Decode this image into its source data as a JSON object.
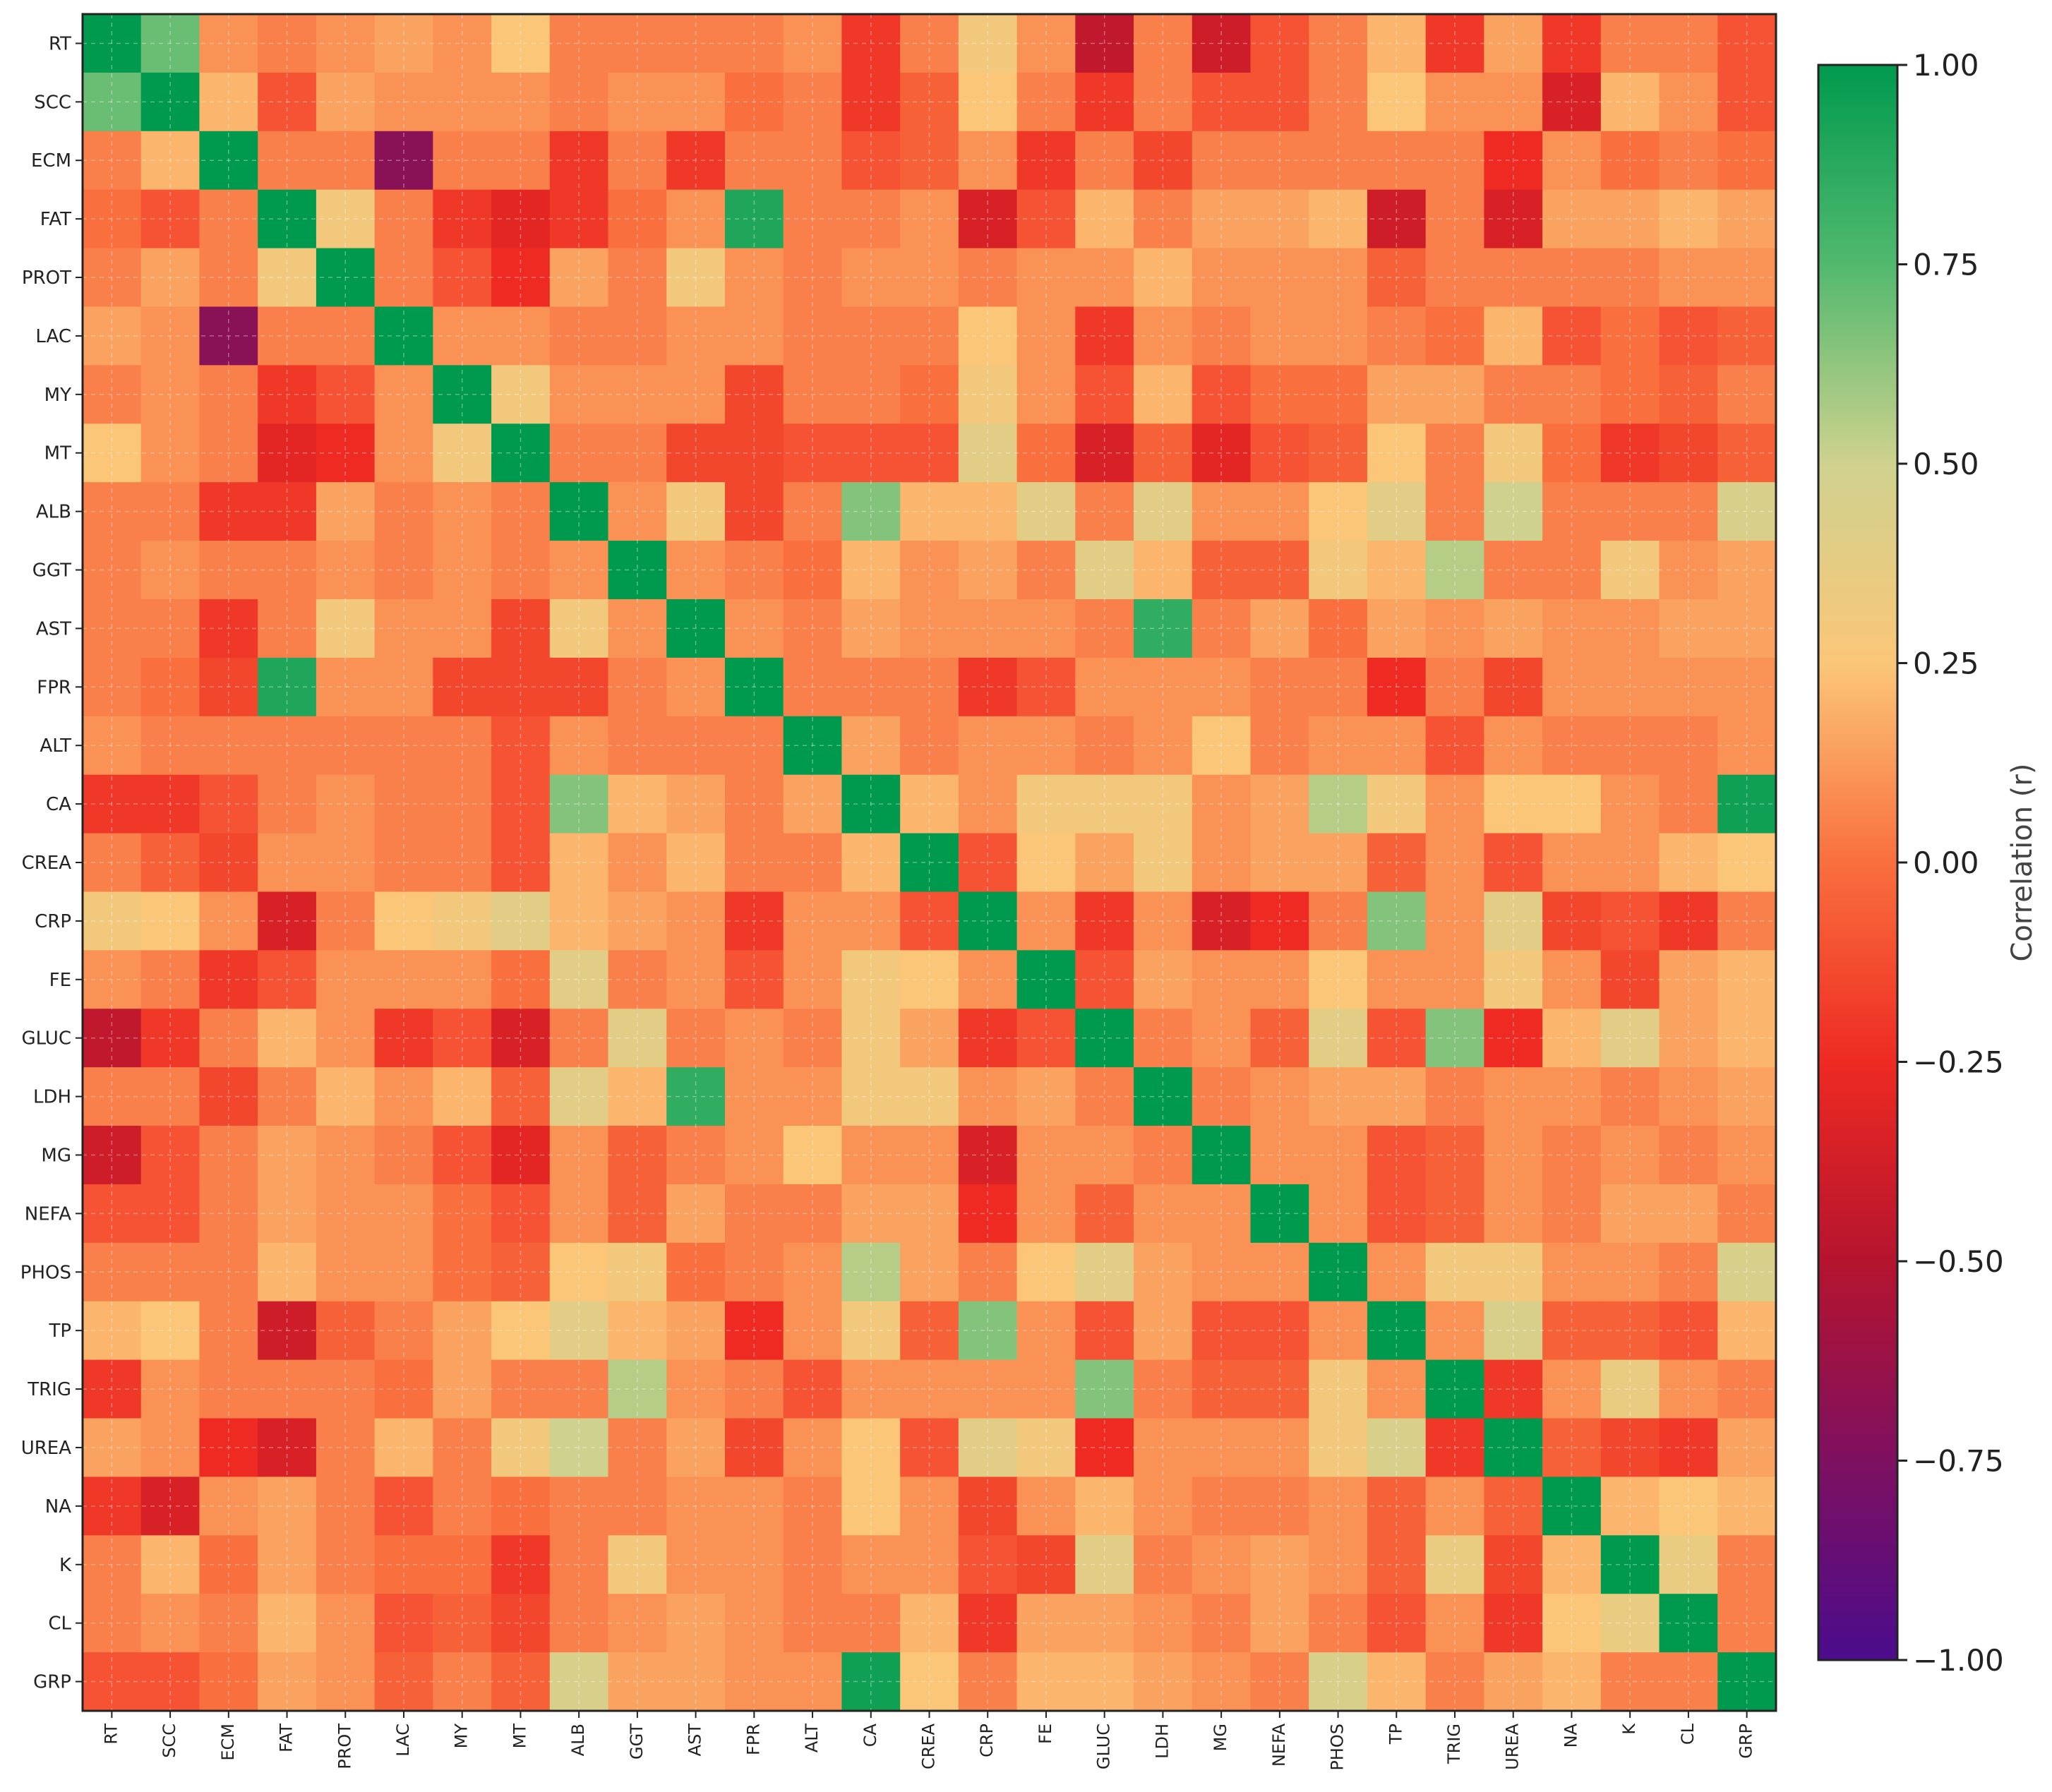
{
  "chart_data": {
    "type": "heatmap",
    "variables": [
      "RT",
      "SCC",
      "ECM",
      "FAT",
      "PROT",
      "LAC",
      "MY",
      "MT",
      "ALB",
      "GGT",
      "AST",
      "FPR",
      "ALT",
      "CA",
      "CREA",
      "CRP",
      "FE",
      "GLUC",
      "LDH",
      "MG",
      "NEFA",
      "PHOS",
      "TP",
      "TRIG",
      "UREA",
      "NA",
      "K",
      "CL",
      "GRP"
    ],
    "values": [
      [
        1.0,
        0.7,
        0.1,
        0.05,
        0.1,
        0.15,
        0.1,
        0.25,
        0.05,
        0.05,
        0.05,
        0.05,
        0.1,
        -0.2,
        0.05,
        0.3,
        0.1,
        -0.45,
        0.05,
        -0.4,
        -0.1,
        0.05,
        0.2,
        -0.2,
        0.15,
        -0.2,
        0.05,
        0.05,
        -0.1
      ],
      [
        0.7,
        1.0,
        0.2,
        -0.1,
        0.15,
        0.1,
        0.1,
        0.1,
        0.05,
        0.1,
        0.1,
        0.0,
        0.05,
        -0.2,
        -0.05,
        0.25,
        0.05,
        -0.2,
        0.05,
        -0.1,
        -0.1,
        0.05,
        0.25,
        0.1,
        0.1,
        -0.35,
        0.2,
        0.1,
        -0.1
      ],
      [
        0.05,
        0.2,
        1.0,
        0.05,
        0.05,
        -0.7,
        0.05,
        0.05,
        -0.2,
        0.05,
        -0.2,
        0.05,
        0.05,
        -0.1,
        -0.05,
        0.1,
        -0.2,
        0.05,
        -0.15,
        0.05,
        0.05,
        0.05,
        0.05,
        0.05,
        -0.25,
        0.1,
        0.0,
        0.05,
        0.0
      ],
      [
        0.0,
        -0.1,
        0.05,
        1.0,
        0.3,
        0.05,
        -0.2,
        -0.3,
        -0.2,
        0.0,
        0.1,
        0.9,
        0.05,
        0.05,
        0.1,
        -0.35,
        -0.1,
        0.2,
        0.05,
        0.15,
        0.15,
        0.2,
        -0.4,
        0.05,
        -0.35,
        0.15,
        0.15,
        0.2,
        0.15
      ],
      [
        0.05,
        0.15,
        0.05,
        0.3,
        1.0,
        0.05,
        -0.1,
        -0.25,
        0.15,
        0.05,
        0.3,
        0.1,
        0.05,
        0.1,
        0.1,
        0.05,
        0.1,
        0.1,
        0.2,
        0.1,
        0.1,
        0.1,
        -0.05,
        0.05,
        0.05,
        0.05,
        0.05,
        0.1,
        0.1
      ],
      [
        0.15,
        0.1,
        -0.7,
        0.05,
        0.05,
        1.0,
        0.1,
        0.1,
        0.05,
        0.05,
        0.1,
        0.1,
        0.05,
        0.05,
        0.05,
        0.25,
        0.1,
        -0.2,
        0.1,
        0.05,
        0.1,
        0.1,
        0.05,
        0.0,
        0.2,
        -0.1,
        0.0,
        -0.1,
        -0.05
      ],
      [
        0.05,
        0.1,
        0.05,
        -0.2,
        -0.1,
        0.1,
        1.0,
        0.3,
        0.1,
        0.1,
        0.1,
        -0.15,
        0.05,
        0.05,
        0.0,
        0.3,
        0.1,
        -0.1,
        0.2,
        -0.1,
        0.0,
        0.0,
        0.15,
        0.15,
        0.05,
        0.05,
        0.0,
        -0.05,
        0.05
      ],
      [
        0.25,
        0.1,
        0.05,
        -0.3,
        -0.25,
        0.1,
        0.3,
        1.0,
        0.05,
        0.05,
        -0.15,
        -0.15,
        -0.1,
        -0.1,
        -0.1,
        0.4,
        0.0,
        -0.35,
        -0.05,
        -0.3,
        -0.1,
        -0.05,
        0.25,
        0.05,
        0.3,
        0.0,
        -0.2,
        -0.15,
        -0.05
      ],
      [
        0.05,
        0.05,
        -0.2,
        -0.2,
        0.15,
        0.05,
        0.1,
        0.05,
        1.0,
        0.1,
        0.3,
        -0.15,
        0.05,
        0.65,
        0.2,
        0.2,
        0.4,
        0.05,
        0.4,
        0.1,
        0.1,
        0.25,
        0.4,
        0.05,
        0.5,
        0.05,
        0.05,
        0.05,
        0.45
      ],
      [
        0.05,
        0.1,
        0.05,
        0.05,
        0.1,
        0.05,
        0.1,
        0.05,
        0.1,
        1.0,
        0.1,
        0.05,
        0.0,
        0.2,
        0.1,
        0.15,
        0.05,
        0.4,
        0.2,
        -0.05,
        -0.05,
        0.3,
        0.2,
        0.55,
        0.05,
        0.05,
        0.3,
        0.1,
        0.15
      ],
      [
        0.05,
        0.05,
        -0.2,
        0.05,
        0.3,
        0.1,
        0.1,
        -0.15,
        0.3,
        0.1,
        1.0,
        0.1,
        0.05,
        0.15,
        0.1,
        0.1,
        0.1,
        0.05,
        0.85,
        0.05,
        0.15,
        0.0,
        0.15,
        0.1,
        0.15,
        0.1,
        0.1,
        0.15,
        0.15
      ],
      [
        0.05,
        0.0,
        -0.15,
        0.9,
        0.1,
        0.1,
        -0.15,
        -0.15,
        -0.15,
        0.05,
        0.1,
        1.0,
        0.05,
        0.05,
        0.05,
        -0.2,
        -0.1,
        0.1,
        0.1,
        0.1,
        0.05,
        0.05,
        -0.25,
        0.05,
        -0.15,
        0.1,
        0.1,
        0.1,
        0.1
      ],
      [
        0.1,
        0.05,
        0.05,
        0.05,
        0.05,
        0.05,
        0.05,
        -0.1,
        0.1,
        0.05,
        0.05,
        0.05,
        1.0,
        0.15,
        0.05,
        0.1,
        0.1,
        0.05,
        0.1,
        0.25,
        0.05,
        0.1,
        0.1,
        -0.1,
        0.1,
        0.05,
        0.05,
        0.05,
        0.1
      ],
      [
        -0.2,
        -0.2,
        -0.1,
        0.05,
        0.1,
        0.05,
        0.05,
        -0.1,
        0.65,
        0.2,
        0.15,
        0.05,
        0.15,
        1.0,
        0.2,
        0.1,
        0.3,
        0.3,
        0.3,
        0.1,
        0.15,
        0.55,
        0.3,
        0.1,
        0.25,
        0.25,
        0.1,
        0.05,
        0.95
      ],
      [
        0.05,
        -0.05,
        -0.15,
        0.1,
        0.1,
        0.05,
        0.05,
        -0.1,
        0.2,
        0.1,
        0.2,
        0.05,
        0.05,
        0.2,
        1.0,
        -0.1,
        0.25,
        0.15,
        0.3,
        0.1,
        0.15,
        0.15,
        -0.05,
        0.1,
        -0.1,
        0.1,
        0.1,
        0.2,
        0.25
      ],
      [
        0.3,
        0.25,
        0.1,
        -0.35,
        0.05,
        0.25,
        0.3,
        0.4,
        0.2,
        0.15,
        0.1,
        -0.2,
        0.1,
        0.1,
        -0.1,
        1.0,
        0.1,
        -0.2,
        0.1,
        -0.35,
        -0.25,
        0.05,
        0.65,
        0.1,
        0.4,
        -0.15,
        -0.1,
        -0.2,
        0.05
      ],
      [
        0.1,
        0.05,
        -0.2,
        -0.1,
        0.1,
        0.1,
        0.1,
        0.0,
        0.4,
        0.05,
        0.1,
        -0.1,
        0.1,
        0.3,
        0.25,
        0.1,
        1.0,
        -0.1,
        0.15,
        0.1,
        0.1,
        0.25,
        0.1,
        0.1,
        0.3,
        0.1,
        -0.15,
        0.15,
        0.2
      ],
      [
        -0.45,
        -0.2,
        0.05,
        0.2,
        0.1,
        -0.2,
        -0.1,
        -0.35,
        0.05,
        0.4,
        0.05,
        0.1,
        0.05,
        0.3,
        0.15,
        -0.2,
        -0.1,
        1.0,
        0.05,
        0.1,
        -0.05,
        0.4,
        -0.1,
        0.65,
        -0.25,
        0.2,
        0.4,
        0.15,
        0.2
      ],
      [
        0.05,
        0.05,
        -0.15,
        0.05,
        0.2,
        0.1,
        0.2,
        -0.05,
        0.4,
        0.2,
        0.85,
        0.1,
        0.1,
        0.3,
        0.3,
        0.1,
        0.15,
        0.05,
        1.0,
        0.05,
        0.1,
        0.15,
        0.15,
        0.05,
        0.1,
        0.1,
        0.05,
        0.1,
        0.15
      ],
      [
        -0.4,
        -0.1,
        0.05,
        0.15,
        0.1,
        0.05,
        -0.1,
        -0.3,
        0.1,
        -0.05,
        0.05,
        0.1,
        0.25,
        0.1,
        0.1,
        -0.35,
        0.1,
        0.1,
        0.05,
        1.0,
        0.1,
        0.1,
        -0.1,
        -0.05,
        0.1,
        0.05,
        0.1,
        0.05,
        0.1
      ],
      [
        -0.1,
        -0.1,
        0.05,
        0.15,
        0.1,
        0.1,
        0.0,
        -0.1,
        0.1,
        -0.05,
        0.15,
        0.05,
        0.05,
        0.15,
        0.15,
        -0.25,
        0.1,
        -0.05,
        0.1,
        0.1,
        1.0,
        0.1,
        -0.1,
        -0.05,
        0.1,
        0.05,
        0.15,
        0.15,
        0.05
      ],
      [
        0.05,
        0.05,
        0.05,
        0.2,
        0.1,
        0.1,
        0.0,
        -0.05,
        0.25,
        0.3,
        0.0,
        0.05,
        0.1,
        0.55,
        0.15,
        0.05,
        0.25,
        0.4,
        0.15,
        0.1,
        0.1,
        1.0,
        0.1,
        0.3,
        0.3,
        0.1,
        0.1,
        0.05,
        0.45
      ],
      [
        0.2,
        0.25,
        0.05,
        -0.4,
        -0.05,
        0.05,
        0.15,
        0.25,
        0.4,
        0.2,
        0.15,
        -0.25,
        0.1,
        0.3,
        -0.05,
        0.65,
        0.1,
        -0.1,
        0.15,
        -0.1,
        -0.1,
        0.1,
        1.0,
        0.1,
        0.45,
        -0.05,
        -0.05,
        -0.1,
        0.2
      ],
      [
        -0.2,
        0.1,
        0.05,
        0.05,
        0.05,
        0.0,
        0.15,
        0.05,
        0.05,
        0.55,
        0.1,
        0.05,
        -0.1,
        0.1,
        0.1,
        0.1,
        0.1,
        0.65,
        0.05,
        -0.05,
        -0.05,
        0.3,
        0.1,
        1.0,
        -0.2,
        0.1,
        0.35,
        0.1,
        0.05
      ],
      [
        0.15,
        0.1,
        -0.25,
        -0.35,
        0.05,
        0.2,
        0.05,
        0.3,
        0.5,
        0.05,
        0.15,
        -0.15,
        0.1,
        0.25,
        -0.1,
        0.4,
        0.3,
        -0.25,
        0.1,
        0.1,
        0.1,
        0.3,
        0.45,
        -0.2,
        1.0,
        -0.05,
        -0.15,
        -0.2,
        0.15
      ],
      [
        -0.2,
        -0.35,
        0.1,
        0.15,
        0.05,
        -0.1,
        0.05,
        0.0,
        0.05,
        0.05,
        0.1,
        0.1,
        0.05,
        0.25,
        0.1,
        -0.15,
        0.1,
        0.2,
        0.1,
        0.05,
        0.05,
        0.1,
        -0.05,
        0.1,
        -0.05,
        1.0,
        0.2,
        0.25,
        0.2
      ],
      [
        0.05,
        0.2,
        0.0,
        0.15,
        0.05,
        0.0,
        0.0,
        -0.2,
        0.05,
        0.3,
        0.1,
        0.1,
        0.05,
        0.1,
        0.1,
        -0.1,
        -0.15,
        0.4,
        0.05,
        0.1,
        0.15,
        0.1,
        -0.05,
        0.35,
        -0.15,
        0.2,
        1.0,
        0.35,
        0.05
      ],
      [
        0.05,
        0.1,
        0.05,
        0.2,
        0.1,
        -0.1,
        -0.05,
        -0.15,
        0.05,
        0.1,
        0.15,
        0.1,
        0.05,
        0.05,
        0.2,
        -0.2,
        0.15,
        0.15,
        0.1,
        0.05,
        0.15,
        0.05,
        -0.1,
        0.1,
        -0.2,
        0.25,
        0.35,
        1.0,
        0.05
      ],
      [
        -0.1,
        -0.1,
        0.0,
        0.15,
        0.1,
        -0.05,
        0.05,
        -0.05,
        0.45,
        0.15,
        0.15,
        0.1,
        0.1,
        0.95,
        0.25,
        0.05,
        0.2,
        0.2,
        0.15,
        0.1,
        0.05,
        0.45,
        0.2,
        0.05,
        0.15,
        0.2,
        0.05,
        0.05,
        1.0
      ]
    ],
    "colorbar": {
      "label": "Correlation (r)",
      "range": [
        -1.0,
        1.0
      ],
      "ticks": [
        "1.00",
        "0.75",
        "0.50",
        "0.25",
        "0.00",
        "−0.25",
        "−0.50",
        "−0.75",
        "−1.00"
      ],
      "tick_values": [
        1.0,
        0.75,
        0.5,
        0.25,
        0.0,
        -0.25,
        -0.5,
        -0.75,
        -1.0
      ],
      "colormap_stops": [
        {
          "v": -1.0,
          "color": "#4b0c8c"
        },
        {
          "v": -0.75,
          "color": "#7e1060"
        },
        {
          "v": -0.5,
          "color": "#b5142e"
        },
        {
          "v": -0.25,
          "color": "#ee2a22"
        },
        {
          "v": 0.0,
          "color": "#f96f3e"
        },
        {
          "v": 0.25,
          "color": "#fbc678"
        },
        {
          "v": 0.5,
          "color": "#cfd28e"
        },
        {
          "v": 0.75,
          "color": "#51b96e"
        },
        {
          "v": 1.0,
          "color": "#009a4e"
        }
      ]
    },
    "grid": true
  }
}
